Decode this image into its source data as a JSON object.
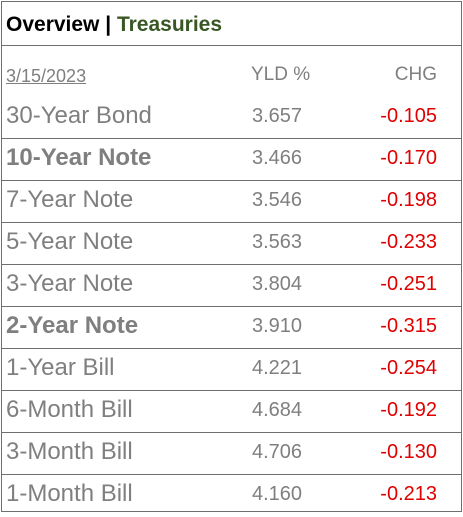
{
  "title": {
    "main": "Overview",
    "separator": " | ",
    "sub": "Treasuries"
  },
  "colors": {
    "title_sub": "#385723",
    "label_gray": "#7f7f7f",
    "negative_red": "#e00000",
    "rule": "#6f6f6f"
  },
  "header": {
    "date": "3/15/2023",
    "yld": "YLD %",
    "chg": "CHG"
  },
  "rows": [
    {
      "name": "30-Year Bond",
      "yld": "3.657",
      "chg": "-0.105",
      "bold": false
    },
    {
      "name": "10-Year Note",
      "yld": "3.466",
      "chg": "-0.170",
      "bold": true
    },
    {
      "name": "7-Year Note",
      "yld": "3.546",
      "chg": "-0.198",
      "bold": false
    },
    {
      "name": "5-Year Note",
      "yld": "3.563",
      "chg": "-0.233",
      "bold": false
    },
    {
      "name": "3-Year Note",
      "yld": "3.804",
      "chg": "-0.251",
      "bold": false
    },
    {
      "name": "2-Year Note",
      "yld": "3.910",
      "chg": "-0.315",
      "bold": true
    },
    {
      "name": "1-Year Bill",
      "yld": "4.221",
      "chg": "-0.254",
      "bold": false
    },
    {
      "name": "6-Month Bill",
      "yld": "4.684",
      "chg": "-0.192",
      "bold": false
    },
    {
      "name": "3-Month Bill",
      "yld": "4.706",
      "chg": "-0.130",
      "bold": false
    },
    {
      "name": "1-Month Bill",
      "yld": "4.160",
      "chg": "-0.213",
      "bold": false
    }
  ]
}
